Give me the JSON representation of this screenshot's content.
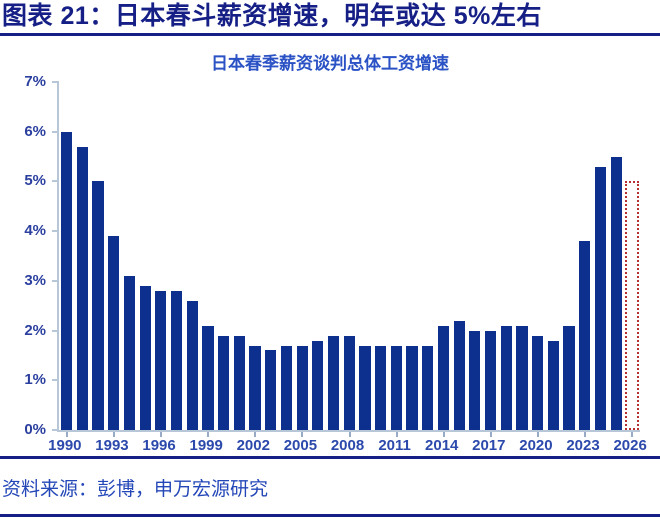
{
  "header": {
    "title": "图表 21：日本春斗薪资增速，明年或达 5%左右"
  },
  "footer": {
    "source": "资料来源：彭博，申万宏源研究"
  },
  "colors": {
    "bar": "#0d2f8e",
    "forecast_outline": "#b53131",
    "header_navy": "#151f86",
    "subtitle_blue": "#2a52c5",
    "axis_label_blue": "#2b3f9f",
    "axis_line": "#b8c7d7"
  },
  "chart_data": {
    "type": "bar",
    "title": "日本春季薪资谈判总体工资增速",
    "xlabel": "",
    "ylabel": "",
    "ylim": [
      0,
      7
    ],
    "grid": false,
    "legend": false,
    "ytick_labels": [
      "0%",
      "1%",
      "2%",
      "3%",
      "4%",
      "5%",
      "6%",
      "7%"
    ],
    "xtick_labels": [
      "1990",
      "1993",
      "1996",
      "1999",
      "2002",
      "2005",
      "2008",
      "2011",
      "2014",
      "2017",
      "2020",
      "2023",
      "2026"
    ],
    "categories": [
      "1990",
      "1991",
      "1992",
      "1993",
      "1994",
      "1995",
      "1996",
      "1997",
      "1998",
      "1999",
      "2000",
      "2001",
      "2002",
      "2003",
      "2004",
      "2005",
      "2006",
      "2007",
      "2008",
      "2009",
      "2010",
      "2011",
      "2012",
      "2013",
      "2014",
      "2015",
      "2016",
      "2017",
      "2018",
      "2019",
      "2020",
      "2021",
      "2022",
      "2023",
      "2024",
      "2025",
      "2026"
    ],
    "values": [
      6.0,
      5.7,
      5.0,
      3.9,
      3.1,
      2.9,
      2.8,
      2.8,
      2.6,
      2.1,
      1.9,
      1.9,
      1.7,
      1.6,
      1.7,
      1.7,
      1.8,
      1.9,
      1.9,
      1.7,
      1.7,
      1.7,
      1.7,
      1.7,
      2.1,
      2.2,
      2.0,
      2.0,
      2.1,
      2.1,
      1.9,
      1.8,
      2.1,
      3.8,
      5.3,
      5.5
    ],
    "forecast": {
      "category": "2026",
      "value": 5.0,
      "style": "red-dotted-outline"
    }
  }
}
